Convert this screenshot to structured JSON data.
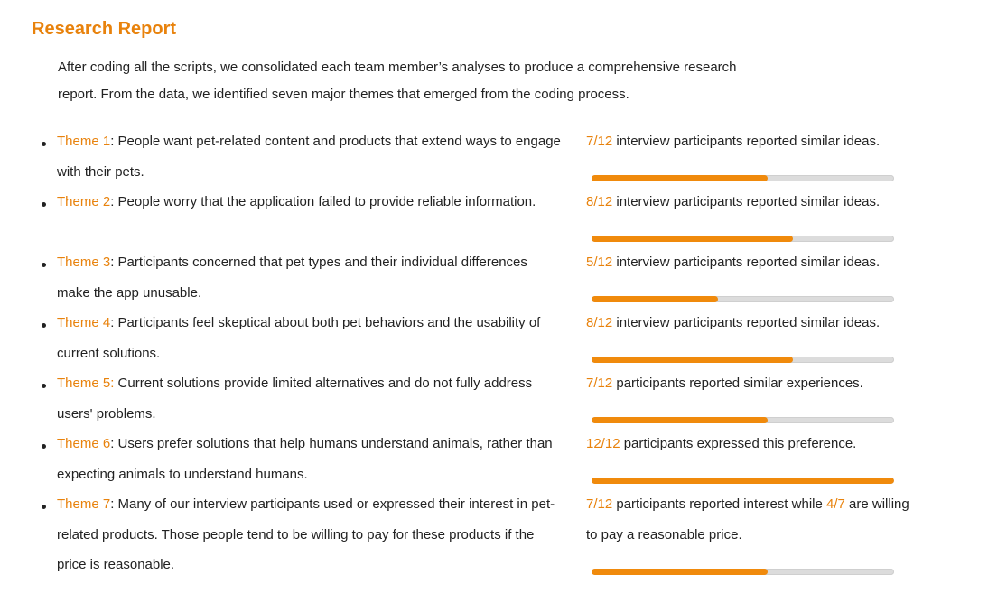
{
  "report": {
    "title": "Research Report",
    "intro": "After coding all the scripts, we consolidated each team member’s analyses to produce a comprehensive research report. From the data, we identified seven major themes that emerged from the coding process."
  },
  "themes": [
    {
      "label": "Theme 1",
      "sep": ": ",
      "text": "People want pet-related content and products that extend ways to engage with their pets.",
      "stat_fraction": "7/12",
      "stat_text": " interview participants reported similar ideas.",
      "progress": 0.583
    },
    {
      "label": "Theme 2",
      "sep": ": ",
      "text": "People worry that the application failed to provide reliable information.",
      "stat_fraction": "8/12",
      "stat_text": " interview participants reported similar ideas.",
      "progress": 0.667
    },
    {
      "label": "Theme 3",
      "sep": ": ",
      "text": "Participants concerned that pet types and their individual differences make the app unusable.",
      "stat_fraction": "5/12",
      "stat_text": " interview participants reported similar ideas.",
      "progress": 0.417
    },
    {
      "label": "Theme 4",
      "sep": ": ",
      "text": "Participants feel skeptical about both pet behaviors and the usability of current solutions.",
      "stat_fraction": "8/12",
      "stat_text": " interview participants reported similar ideas.",
      "progress": 0.667
    },
    {
      "label": "Theme 5:",
      "sep": " ",
      "text": "Current solutions provide limited alternatives and do not fully address users' problems.",
      "stat_fraction": "7/12",
      "stat_text": " participants reported similar experiences.",
      "progress": 0.583
    },
    {
      "label": "Theme 6",
      "sep": ": ",
      "text": "Users prefer solutions that help humans understand animals, rather than expecting animals to understand humans.",
      "stat_fraction": "12/12",
      "stat_text": " participants expressed this preference.",
      "progress": 1.0
    },
    {
      "label": "Theme 7",
      "sep": ": ",
      "text": "Many of our interview participants used or expressed their interest in pet-related products. Those people tend to be willing to pay for these products if the price is reasonable.",
      "stat_fraction": "7/12",
      "stat_text": " participants reported interest while ",
      "stat_fraction2": "4/7",
      "stat_text2": " are willing to pay a reasonable price.",
      "progress": 0.583
    }
  ]
}
